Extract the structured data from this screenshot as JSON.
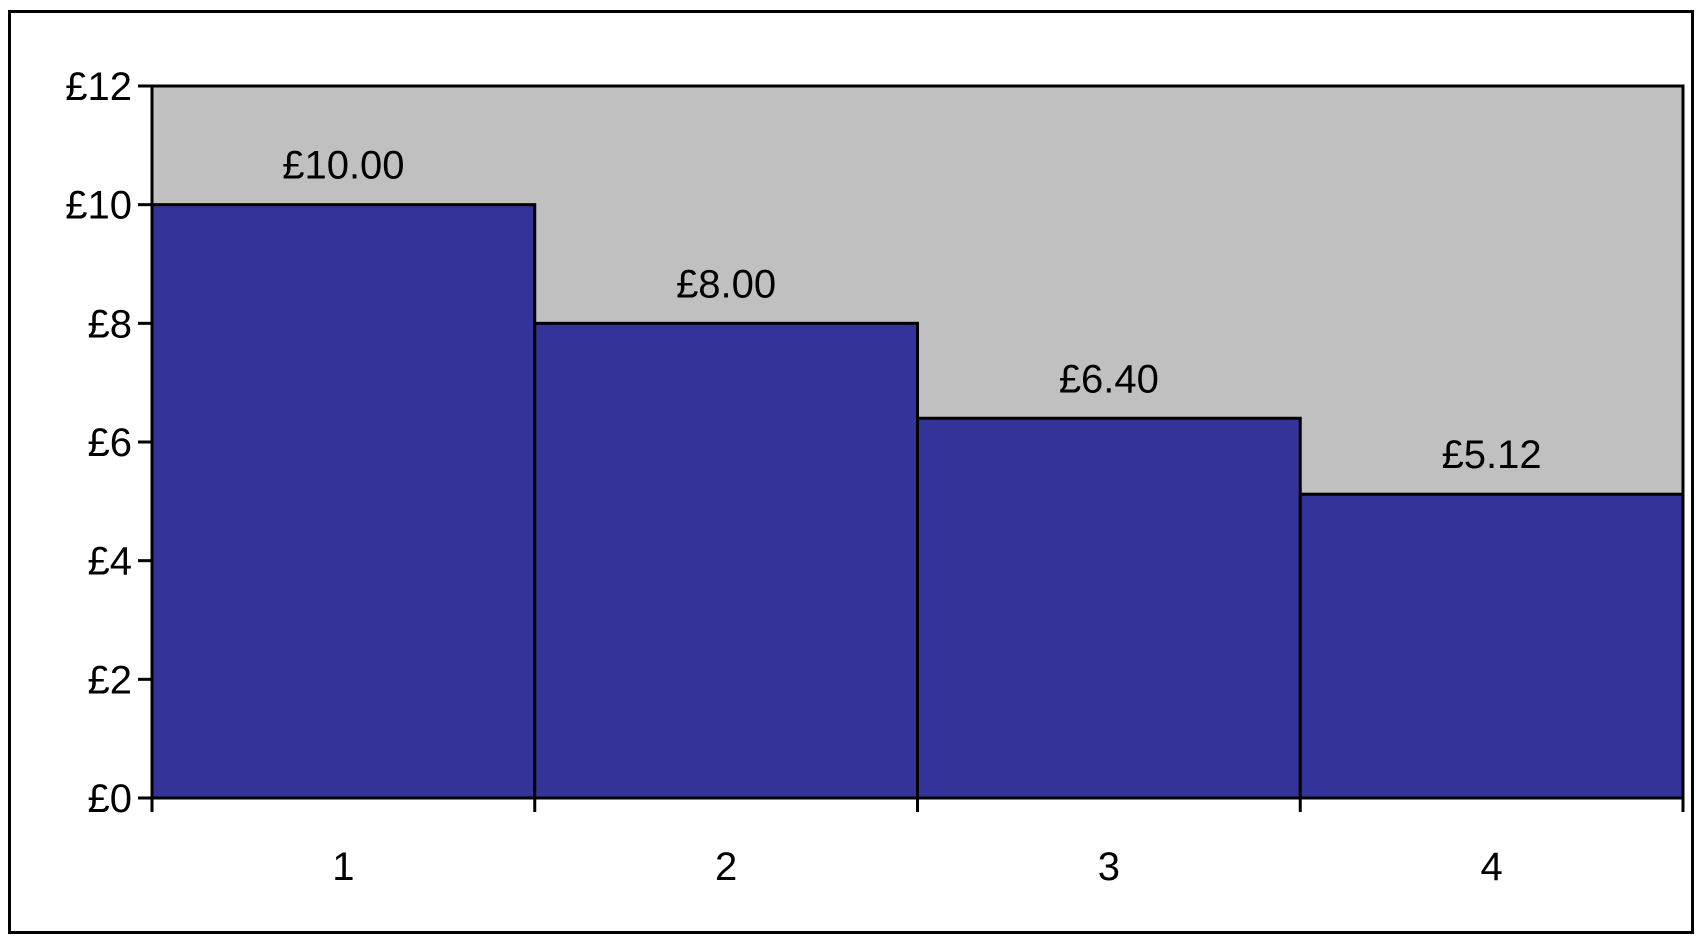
{
  "chart_data": {
    "type": "bar",
    "categories": [
      "1",
      "2",
      "3",
      "4"
    ],
    "values": [
      10.0,
      8.0,
      6.4,
      5.12
    ],
    "data_labels": [
      "£10.00",
      "£8.00",
      "£6.40",
      "£5.12"
    ],
    "y_ticks": [
      0,
      2,
      4,
      6,
      8,
      10,
      12
    ],
    "y_tick_labels": [
      "£0",
      "£2",
      "£4",
      "£6",
      "£8",
      "£10",
      "£12"
    ],
    "ylim": [
      0,
      12
    ],
    "grid": false,
    "legend": "none",
    "colors": {
      "bar": "#333399",
      "plot_area": "#c0c0c0",
      "axis": "#000000"
    }
  }
}
